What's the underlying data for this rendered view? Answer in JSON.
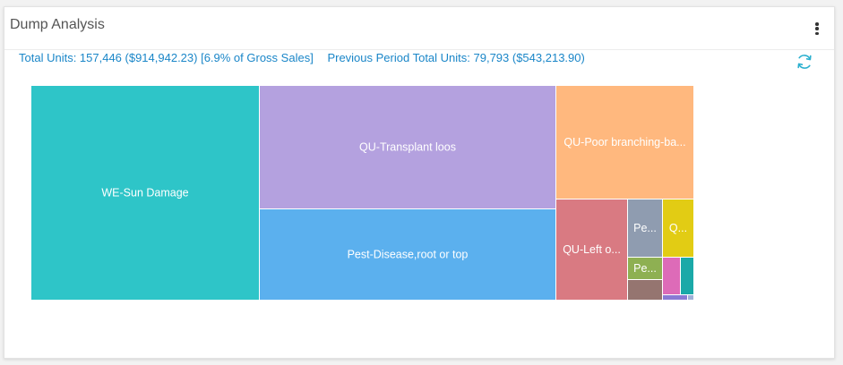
{
  "widget": {
    "title": "Dump Analysis",
    "menu_icon": "kebab-menu-icon",
    "refresh_icon": "refresh-icon",
    "accent_color": "#1a86c8"
  },
  "summary": {
    "total_units": "Total Units: 157,446 ($914,942.23) [6.9% of Gross Sales]",
    "previous_period": "Previous Period Total Units: 79,793 ($543,213.90)"
  },
  "chart_data": {
    "type": "treemap",
    "title": "",
    "nodes": [
      {
        "label": "WE-Sun Damage",
        "value": 34.3,
        "color": "#2ec5c8"
      },
      {
        "label": "QU-Transplant loos",
        "value": 26.1,
        "color": "#b4a1df"
      },
      {
        "label": "Pest-Disease,root or top",
        "value": 17.4,
        "color": "#5bb0ee"
      },
      {
        "label": "QU-Poor branching-ba...",
        "value": 10.2,
        "color": "#ffb87e"
      },
      {
        "label": "QU-Left o...",
        "value": 7.1,
        "color": "#d97a82"
      },
      {
        "label": "Pe...",
        "value": 1.9,
        "color": "#8f9cb0"
      },
      {
        "label": "Q...",
        "value": 1.4,
        "color": "#e2cc14"
      },
      {
        "label": "Pe...",
        "value": 1.2,
        "color": "#8eb052"
      },
      {
        "label": "",
        "value": 0.9,
        "color": "#957570"
      },
      {
        "label": "",
        "value": 0.6,
        "color": "#dd6bb8"
      },
      {
        "label": "",
        "value": 0.6,
        "color": "#1aa9a8"
      },
      {
        "label": "",
        "value": 0.2,
        "color": "#8a7ad4"
      },
      {
        "label": "",
        "value": 0.1,
        "color": "#9fb0d8"
      }
    ]
  }
}
